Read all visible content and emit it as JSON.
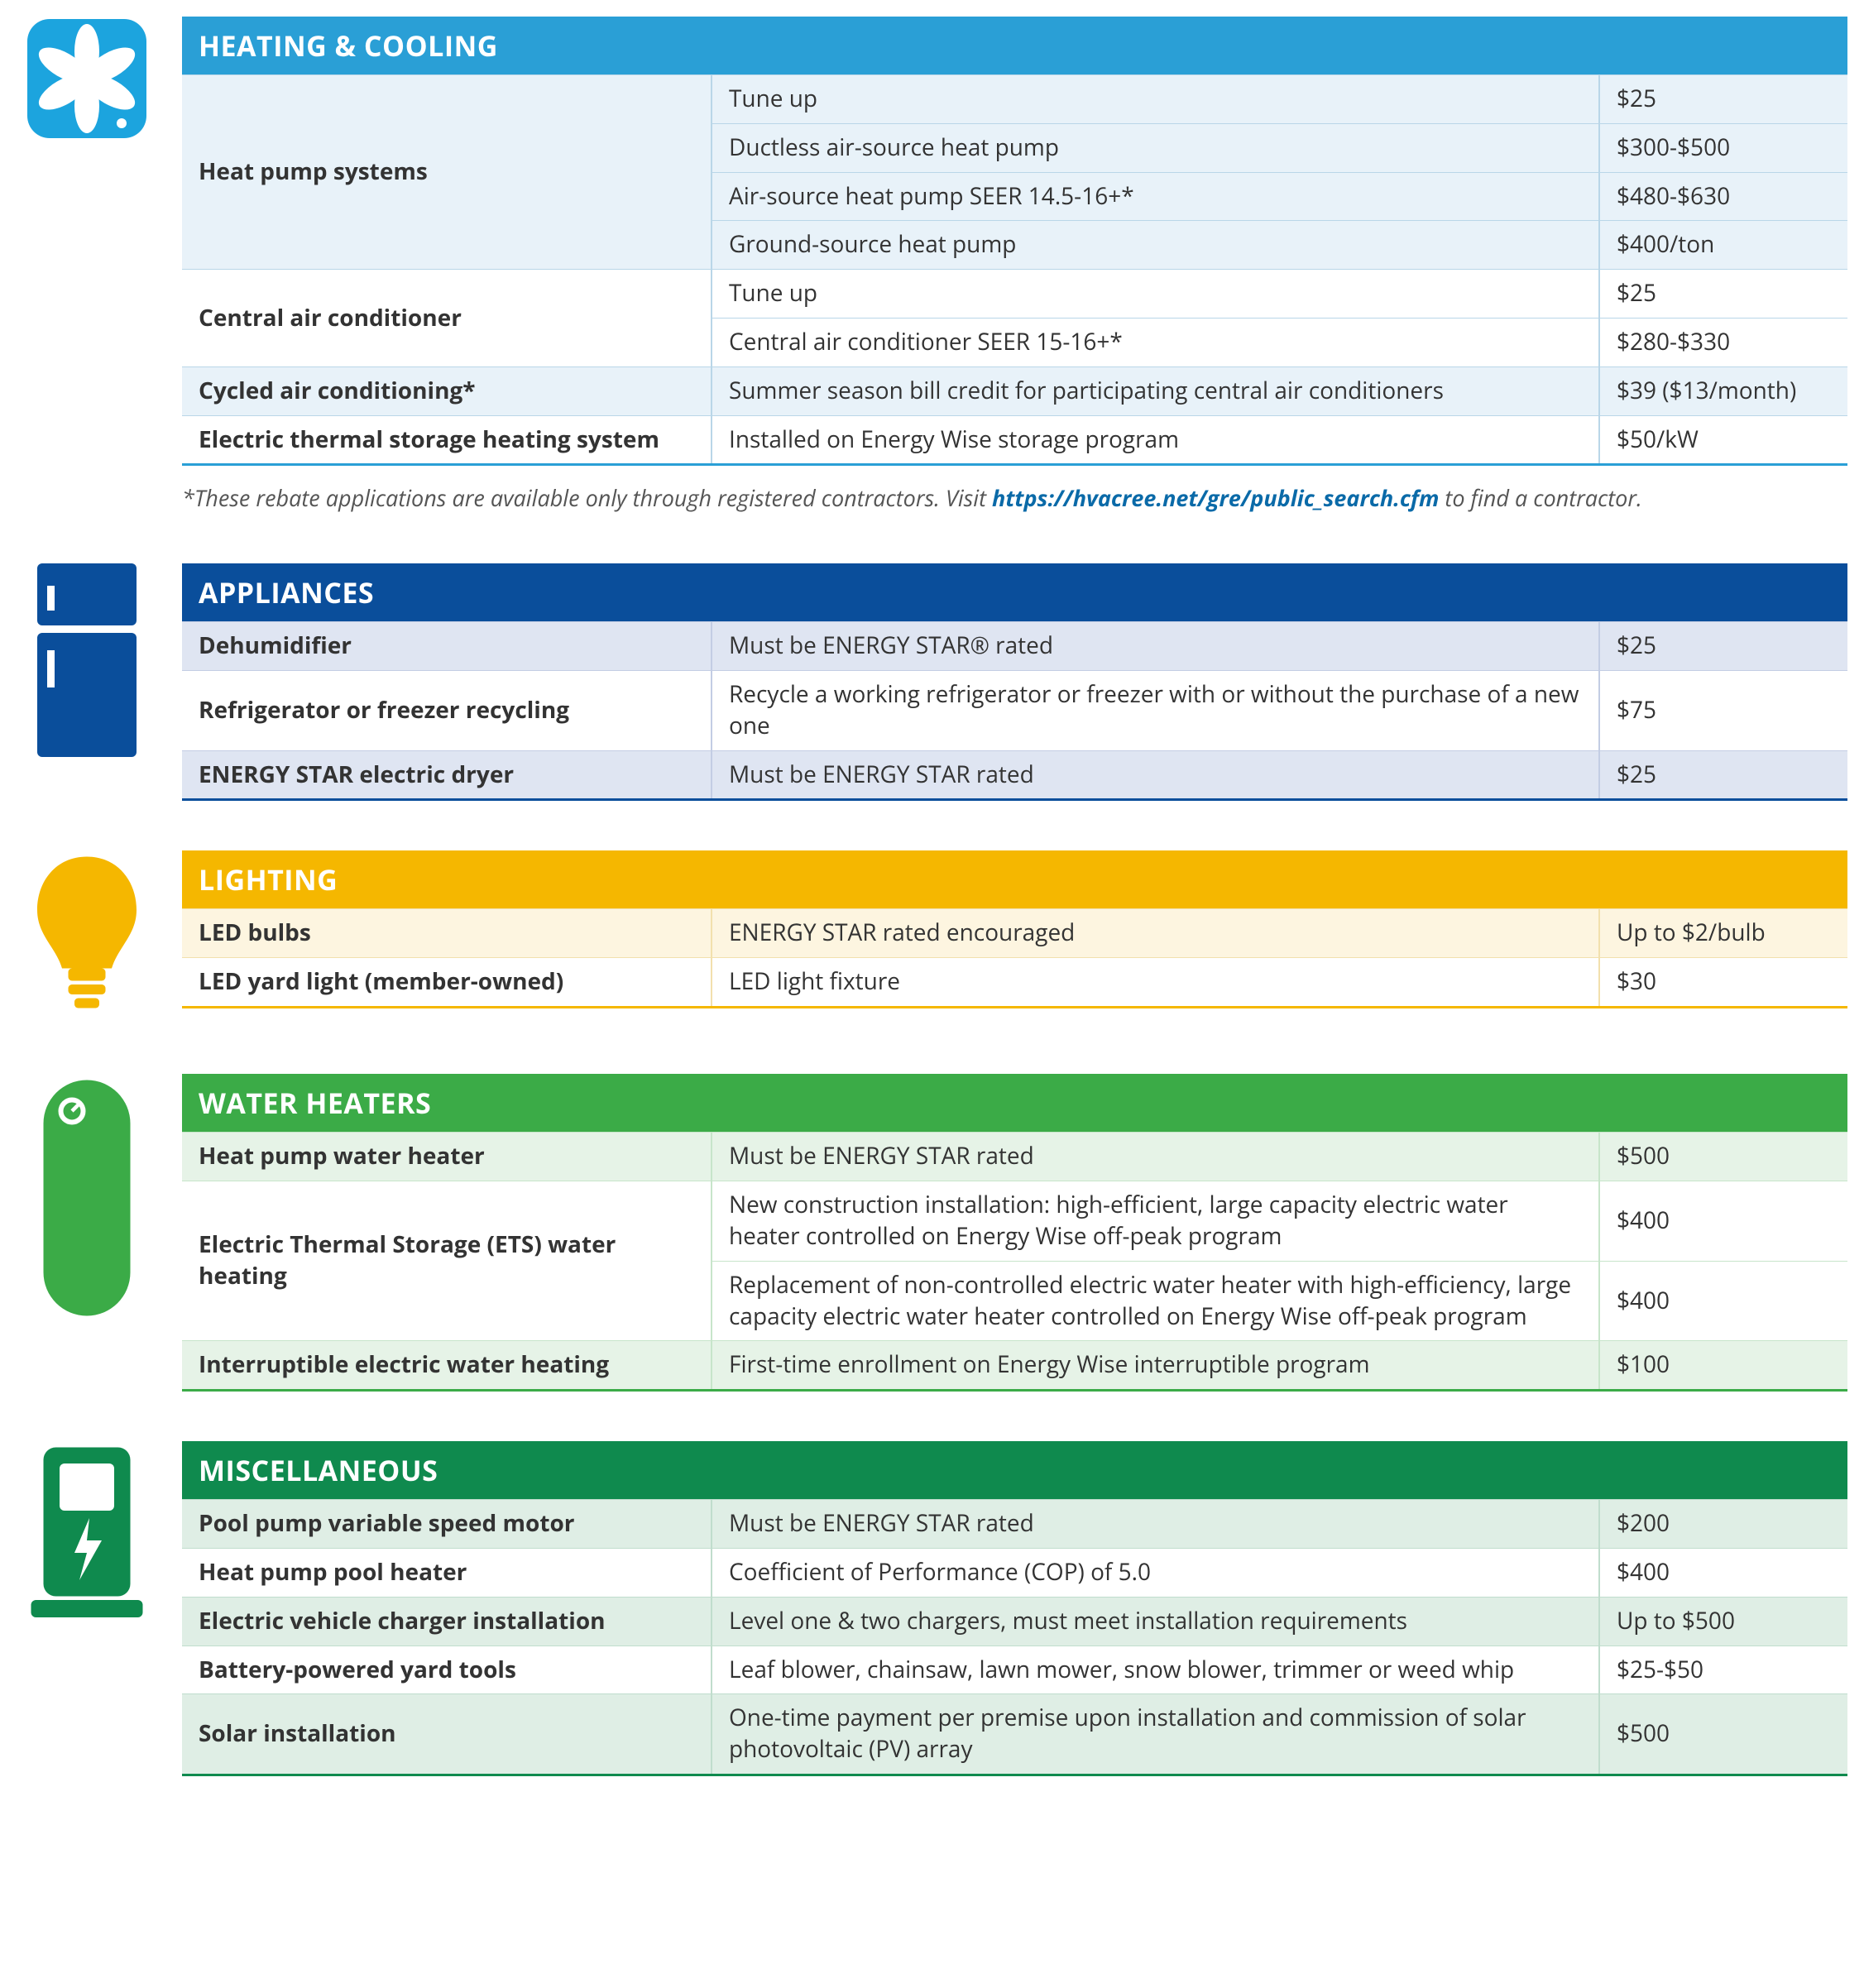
{
  "sections": [
    {
      "id": "heating",
      "title": "HEATING & COOLING",
      "header_bg": "#2a9fd6",
      "header_text": "#ffffff",
      "row_tint": "#e8f2f9",
      "row_plain": "#ffffff",
      "border_bottom": "#2a9fd6",
      "vdiv": "#b9d6e8",
      "icon": "fan",
      "icon_color": "#1ca4de",
      "groups": [
        {
          "name": "Heat pump systems",
          "tint": true,
          "rows": [
            {
              "desc": "Tune up",
              "amt": "$25"
            },
            {
              "desc": "Ductless air-source heat pump",
              "amt": "$300-$500"
            },
            {
              "desc": "Air-source heat pump SEER 14.5-16+*",
              "amt": "$480-$630"
            },
            {
              "desc": "Ground-source heat pump",
              "amt": "$400/ton"
            }
          ]
        },
        {
          "name": "Central air conditioner",
          "tint": false,
          "rows": [
            {
              "desc": "Tune up",
              "amt": "$25"
            },
            {
              "desc": "Central air conditioner SEER 15-16+*",
              "amt": "$280-$330"
            }
          ]
        },
        {
          "name": "Cycled air conditioning*",
          "tint": true,
          "rows": [
            {
              "desc": "Summer season bill credit for participating central air conditioners",
              "amt": "$39 ($13/month)"
            }
          ]
        },
        {
          "name": "Electric thermal storage heating system",
          "tint": false,
          "rows": [
            {
              "desc": "Installed on Energy Wise storage program",
              "amt": "$50/kW"
            }
          ]
        }
      ],
      "footnote": {
        "pre": "*These rebate applications are available only through registered contractors. Visit ",
        "link_text": "https://hvacree.net/gre/public_search.cfm",
        "link_color": "#0a6aa8",
        "post": " to find a contractor."
      }
    },
    {
      "id": "appliances",
      "title": "APPLIANCES",
      "header_bg": "#0a4e9b",
      "header_text": "#ffffff",
      "row_tint": "#dfe5f2",
      "row_plain": "#ffffff",
      "border_bottom": "#0a4e9b",
      "vdiv": "#c3cde4",
      "icon": "fridge",
      "icon_color": "#0a4e9b",
      "groups": [
        {
          "name": "Dehumidifier",
          "tint": true,
          "rows": [
            {
              "desc": "Must be ENERGY STAR® rated",
              "amt": "$25"
            }
          ]
        },
        {
          "name": "Refrigerator or freezer recycling",
          "tint": false,
          "rows": [
            {
              "desc": "Recycle a working refrigerator or freezer with or without the purchase of a new one",
              "amt": "$75"
            }
          ]
        },
        {
          "name": "ENERGY STAR electric dryer",
          "tint": true,
          "rows": [
            {
              "desc": "Must be ENERGY STAR rated",
              "amt": "$25"
            }
          ]
        }
      ]
    },
    {
      "id": "lighting",
      "title": "LIGHTING",
      "header_bg": "#f5b700",
      "header_text": "#ffffff",
      "row_tint": "#fdf5e0",
      "row_plain": "#ffffff",
      "border_bottom": "#f5b700",
      "vdiv": "#f2e0ad",
      "icon": "bulb",
      "icon_color": "#f5b700",
      "groups": [
        {
          "name": "LED bulbs",
          "tint": true,
          "rows": [
            {
              "desc": "ENERGY STAR rated encouraged",
              "amt": "Up to $2/bulb"
            }
          ]
        },
        {
          "name": "LED yard light (member-owned)",
          "tint": false,
          "rows": [
            {
              "desc": "LED light fixture",
              "amt": "$30"
            }
          ]
        }
      ]
    },
    {
      "id": "water",
      "title": "WATER HEATERS",
      "header_bg": "#3bab47",
      "header_text": "#ffffff",
      "row_tint": "#e6f3e7",
      "row_plain": "#ffffff",
      "border_bottom": "#3bab47",
      "vdiv": "#c7e5ca",
      "icon": "tank",
      "icon_color": "#3bab47",
      "groups": [
        {
          "name": "Heat pump water heater",
          "tint": true,
          "rows": [
            {
              "desc": "Must be ENERGY STAR rated",
              "amt": "$500"
            }
          ]
        },
        {
          "name": "Electric Thermal Storage (ETS) water heating",
          "tint": false,
          "rows": [
            {
              "desc": "New construction installation: high-efficient, large capacity electric water heater controlled on Energy Wise off-peak program",
              "amt": "$400"
            },
            {
              "desc": "Replacement of non-controlled electric water heater with high-efficiency, large capacity electric water heater controlled on Energy Wise off-peak program",
              "amt": "$400"
            }
          ]
        },
        {
          "name": "Interruptible electric water heating",
          "tint": true,
          "rows": [
            {
              "desc": "First-time enrollment on Energy Wise interruptible program",
              "amt": "$100"
            }
          ]
        }
      ]
    },
    {
      "id": "misc",
      "title": "MISCELLANEOUS",
      "header_bg": "#0f8a4e",
      "header_text": "#ffffff",
      "row_tint": "#dfeee5",
      "row_plain": "#ffffff",
      "border_bottom": "#0f8a4e",
      "vdiv": "#c0ddcd",
      "icon": "charger",
      "icon_color": "#0f8a4e",
      "groups": [
        {
          "name": "Pool pump variable speed motor",
          "tint": true,
          "rows": [
            {
              "desc": "Must be ENERGY STAR rated",
              "amt": "$200"
            }
          ]
        },
        {
          "name": "Heat pump pool heater",
          "tint": false,
          "rows": [
            {
              "desc": "Coefficient of Performance (COP) of 5.0",
              "amt": "$400"
            }
          ]
        },
        {
          "name": "Electric vehicle charger installation",
          "tint": true,
          "rows": [
            {
              "desc": "Level one & two chargers, must meet installation requirements",
              "amt": "Up to $500"
            }
          ]
        },
        {
          "name": "Battery-powered yard tools",
          "tint": false,
          "rows": [
            {
              "desc": "Leaf blower, chainsaw, lawn mower, snow blower, trimmer or weed whip",
              "amt": "$25-$50"
            }
          ]
        },
        {
          "name": "Solar installation",
          "tint": true,
          "rows": [
            {
              "desc": "One-time payment per premise upon installation and commission of solar photovoltaic (PV) array",
              "amt": "$500"
            }
          ]
        }
      ]
    }
  ]
}
